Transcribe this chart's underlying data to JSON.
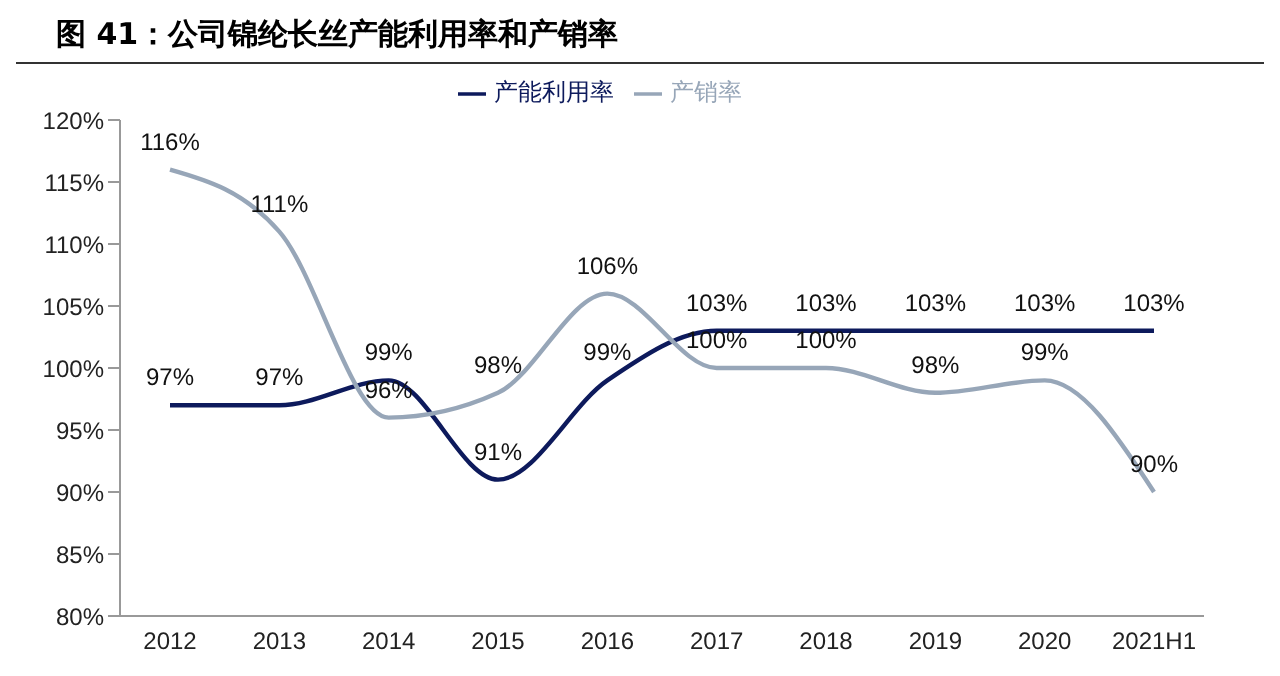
{
  "chart_data": {
    "type": "line",
    "title": "图 41：公司锦纶长丝产能利用率和产销率",
    "categories": [
      "2012",
      "2013",
      "2014",
      "2015",
      "2016",
      "2017",
      "2018",
      "2019",
      "2020",
      "2021H1"
    ],
    "series": [
      {
        "name": "产能利用率",
        "color": "#0d1a5c",
        "values": [
          97,
          97,
          99,
          91,
          99,
          103,
          103,
          103,
          103,
          103
        ],
        "value_labels": [
          "97%",
          "97%",
          "99%",
          "91%",
          "99%",
          "103%",
          "103%",
          "103%",
          "103%",
          "103%"
        ]
      },
      {
        "name": "产销率",
        "color": "#97a6b8",
        "values": [
          116,
          111,
          96,
          98,
          106,
          100,
          100,
          98,
          99,
          90
        ],
        "value_labels": [
          "116%",
          "111%",
          "96%",
          "98%",
          "106%",
          "100%",
          "100%",
          "98%",
          "99%",
          "90%"
        ]
      }
    ],
    "ylim": [
      80,
      120
    ],
    "yticks": [
      {
        "value": 80,
        "label": "80%"
      },
      {
        "value": 85,
        "label": "85%"
      },
      {
        "value": 90,
        "label": "90%"
      },
      {
        "value": 95,
        "label": "95%"
      },
      {
        "value": 100,
        "label": "100%"
      },
      {
        "value": 105,
        "label": "105%"
      },
      {
        "value": 110,
        "label": "110%"
      },
      {
        "value": 115,
        "label": "115%"
      },
      {
        "value": 120,
        "label": "120%"
      }
    ],
    "legend": "top",
    "grid": false,
    "marker": "none",
    "line_style": "solid"
  }
}
